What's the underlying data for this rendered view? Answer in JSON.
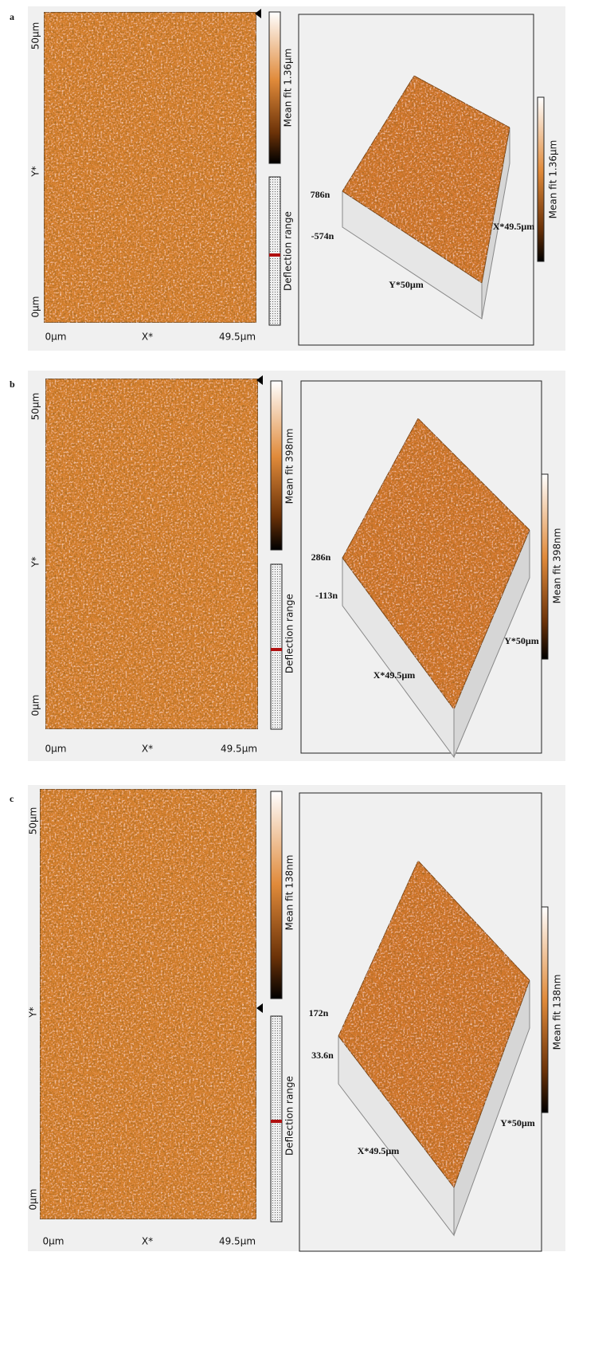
{
  "panels": [
    {
      "label": "a",
      "y_top": "50µm",
      "y_mid": "Y*",
      "y_bottom": "0µm",
      "x_left": "0µm",
      "x_mid": "X*",
      "x_right": "49.5µm",
      "colorbar_label": "Mean fit 1.36µm",
      "deflection_label": "Deflection range",
      "view_3d": {
        "z_top": "786n",
        "z_bottom": "-574n",
        "right_axis": "X*49.5µm",
        "front_axis": "Y*50µm",
        "colorbar_label": "Mean fit 1.36µm"
      }
    },
    {
      "label": "b",
      "y_top": "50µm",
      "y_mid": "Y*",
      "y_bottom": "0µm",
      "x_left": "0µm",
      "x_mid": "X*",
      "x_right": "49.5µm",
      "colorbar_label": "Mean fit 398nm",
      "deflection_label": "Deflection range",
      "view_3d": {
        "z_top": "286n",
        "z_bottom": "-113n",
        "right_axis": "Y*50µm",
        "front_axis": "X*49.5µm",
        "colorbar_label": "Mean fit 398nm"
      }
    },
    {
      "label": "c",
      "y_top": "50µm",
      "y_mid": "Y*",
      "y_bottom": "0µm",
      "x_left": "0µm",
      "x_mid": "X*",
      "x_right": "49.5µm",
      "colorbar_label": "Mean fit 138nm",
      "deflection_label": "Deflection range",
      "view_3d": {
        "z_top": "172n",
        "z_bottom": "33.6n",
        "right_axis": "Y*50µm",
        "front_axis": "X*49.5µm",
        "colorbar_label": "Mean fit 138nm"
      }
    }
  ]
}
